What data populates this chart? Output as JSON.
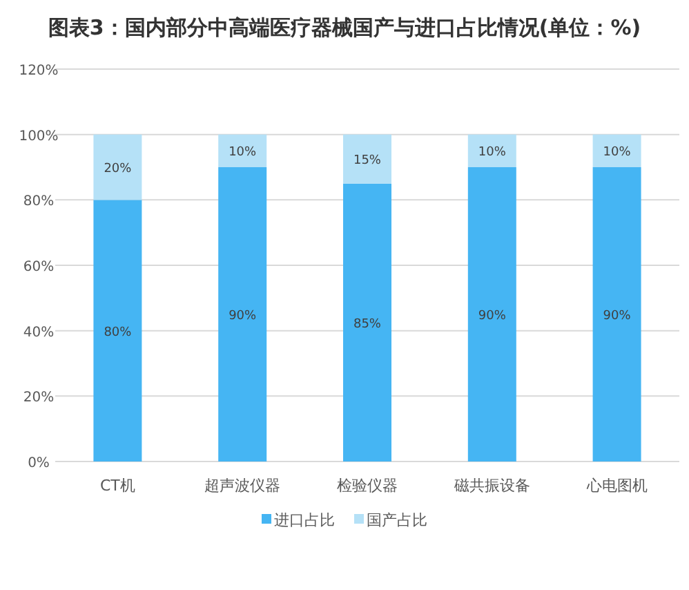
{
  "chart_data": {
    "type": "bar",
    "title": "图表3：国内部分中高端医疗器械国产与进口占比情况(单位：%)",
    "categories": [
      "CT机",
      "超声波仪器",
      "检验仪器",
      "磁共振设备",
      "心电图机"
    ],
    "stacked": true,
    "series": [
      {
        "name": "进口占比",
        "color": "#45b5f3",
        "values": [
          80,
          90,
          85,
          90,
          90
        ],
        "value_labels": [
          "80%",
          "90%",
          "85%",
          "90%",
          "90%"
        ]
      },
      {
        "name": "国产占比",
        "color": "#b5e1f7",
        "values": [
          20,
          10,
          15,
          10,
          10
        ],
        "value_labels": [
          "20%",
          "10%",
          "15%",
          "10%",
          "10%"
        ]
      }
    ],
    "ylim": [
      0,
      120
    ],
    "yticks": [
      {
        "value": 0,
        "label": "0%"
      },
      {
        "value": 20,
        "label": "20%"
      },
      {
        "value": 40,
        "label": "40%"
      },
      {
        "value": 60,
        "label": "60%"
      },
      {
        "value": 80,
        "label": "80%"
      },
      {
        "value": 100,
        "label": "100%"
      },
      {
        "value": 120,
        "label": "120%"
      }
    ],
    "grid": "y",
    "legend": "bottom"
  }
}
